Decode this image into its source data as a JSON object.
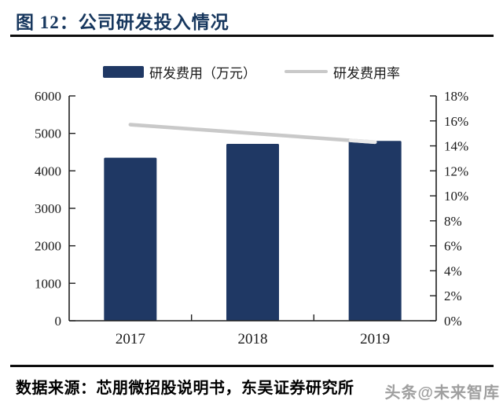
{
  "header": {
    "title": "图 12：公司研发投入情况"
  },
  "legend": {
    "bar": {
      "label": "研发费用（万元）"
    },
    "line": {
      "label": "研发费用率"
    }
  },
  "chart_data": {
    "type": "bar",
    "title": "公司研发投入情况",
    "categories": [
      "2017",
      "2018",
      "2019"
    ],
    "series": [
      {
        "name": "研发费用（万元）",
        "type": "bar",
        "axis": "left",
        "values": [
          4350,
          4720,
          4800
        ]
      },
      {
        "name": "研发费用率",
        "type": "line",
        "axis": "right",
        "values": [
          15.7,
          15.0,
          14.3
        ]
      }
    ],
    "left_axis": {
      "min": 0,
      "max": 6000,
      "step": 1000,
      "labels": [
        "0",
        "1000",
        "2000",
        "3000",
        "4000",
        "5000",
        "6000"
      ]
    },
    "right_axis": {
      "min": 0,
      "max": 18,
      "step": 2,
      "labels": [
        "0%",
        "2%",
        "4%",
        "6%",
        "8%",
        "10%",
        "12%",
        "14%",
        "16%",
        "18%"
      ]
    },
    "grid": false,
    "legend_position": "top"
  },
  "footer": {
    "source": "数据来源：芯朋微招股说明书，东吴证券研究所",
    "watermark": "头条@未来智库"
  },
  "colors": {
    "bar": "#1F3864",
    "line": "#C9C9C9",
    "line_highlight": "#EAEAEA",
    "title": "#17375E",
    "axis": "#1f1f1f",
    "watermark": "#8F8F8F"
  }
}
